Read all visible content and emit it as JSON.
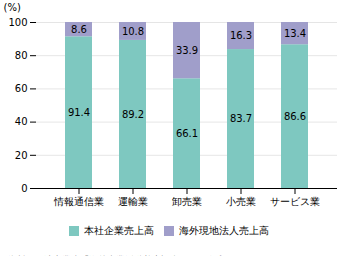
{
  "chart_data": {
    "type": "bar",
    "stacked": true,
    "categories": [
      "情報通信業",
      "運輸業",
      "卸売業",
      "小売業",
      "サービス業"
    ],
    "series": [
      {
        "name": "本社企業売上高",
        "color": "#7ec8c0",
        "values": [
          91.4,
          89.2,
          66.1,
          83.7,
          86.6
        ]
      },
      {
        "name": "海外現地法人売上高",
        "color": "#a09eca",
        "values": [
          8.6,
          10.8,
          33.9,
          16.3,
          13.4
        ]
      }
    ],
    "ylabel": "(%)",
    "ylim": [
      0,
      100
    ],
    "yticks": [
      0,
      20,
      40,
      60,
      80,
      100
    ],
    "grid": true,
    "data_labels": true,
    "legend": "bottom",
    "note": "資料：経済産業省「海外事業活動基本調査」から作成。"
  }
}
